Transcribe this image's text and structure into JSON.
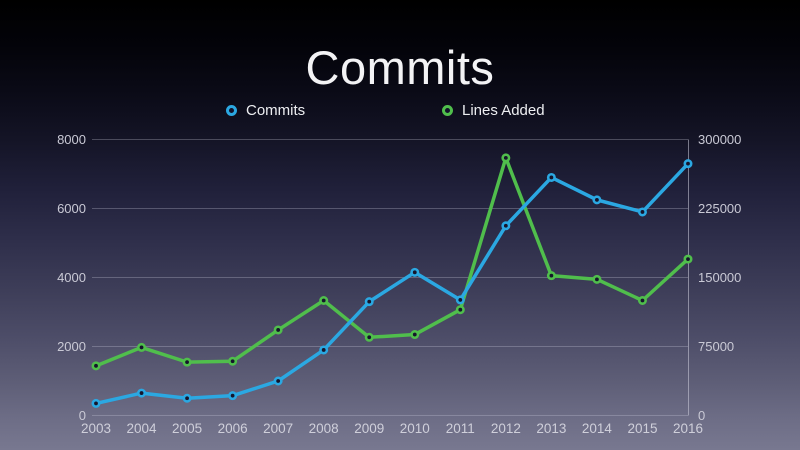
{
  "title": "Commits",
  "legend": [
    {
      "label": "Commits",
      "color": "#2BA8E2"
    },
    {
      "label": "Lines Added",
      "color": "#50BE4C"
    }
  ],
  "chart_data": {
    "type": "line",
    "title": "Commits",
    "x": [
      2003,
      2004,
      2005,
      2006,
      2007,
      2008,
      2009,
      2010,
      2011,
      2012,
      2013,
      2014,
      2015,
      2016
    ],
    "series": [
      {
        "name": "Commits",
        "axis": "left",
        "color": "#2BA8E2",
        "values": [
          350,
          650,
          500,
          575,
          1000,
          1900,
          3300,
          4150,
          3350,
          5500,
          6900,
          6250,
          5900,
          7300
        ]
      },
      {
        "name": "Lines Added",
        "axis": "right",
        "color": "#50BE4C",
        "values": [
          54000,
          74000,
          58000,
          59000,
          93000,
          125000,
          85000,
          88000,
          115000,
          280000,
          152000,
          148000,
          125000,
          170000
        ]
      }
    ],
    "left_axis": {
      "range": [
        0,
        8000
      ],
      "ticks": [
        0,
        2000,
        4000,
        6000,
        8000
      ]
    },
    "right_axis": {
      "range": [
        0,
        300000
      ],
      "ticks": [
        0,
        75000,
        150000,
        225000,
        300000
      ]
    },
    "grid": true,
    "legend_position": "top",
    "marker": "ring",
    "line_width": 3.5
  },
  "colors": {
    "grid": "rgba(205,205,220,0.40)",
    "axis_line": "rgba(205,205,220,0.55)",
    "axis_text": "#c9c9d5",
    "title_text": "#f3f3f5",
    "marker_fill": "#15152b"
  }
}
